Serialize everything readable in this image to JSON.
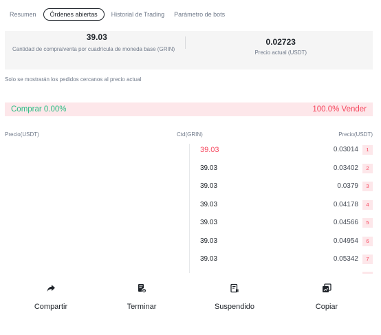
{
  "tabs": [
    {
      "label": "Resumen"
    },
    {
      "label": "Órdenes abiertas",
      "active": true
    },
    {
      "label": "Historial de Trading"
    },
    {
      "label": "Parámetro de bots"
    }
  ],
  "summary": {
    "left": {
      "value": "39.03",
      "label": "Cantidad de compra/venta por cuadrícula de moneda base (GRIN)"
    },
    "right": {
      "value": "0.02723",
      "label": "Precio actual (USDT)"
    }
  },
  "note": "Solo se mostrarán los pedidos cercanos al precio actual",
  "ratio": {
    "buy": "Comprar 0.00%",
    "sell": "100.0% Vender",
    "buy_color": "#2ebd85",
    "sell_color": "#f6465d"
  },
  "table": {
    "headers": {
      "price_left": "Precio(USDT)",
      "qty": "Ctd(GRIN)",
      "price_right": "Precio(USDT)"
    },
    "sell_orders": [
      {
        "qty": "39.03",
        "price": "0.03014",
        "index": "1",
        "highlight": true
      },
      {
        "qty": "39.03",
        "price": "0.03402",
        "index": "2"
      },
      {
        "qty": "39.03",
        "price": "0.0379",
        "index": "3"
      },
      {
        "qty": "39.03",
        "price": "0.04178",
        "index": "4"
      },
      {
        "qty": "39.03",
        "price": "0.04566",
        "index": "5"
      },
      {
        "qty": "39.03",
        "price": "0.04954",
        "index": "6"
      },
      {
        "qty": "39.03",
        "price": "0.05342",
        "index": "7"
      }
    ]
  },
  "actions": [
    {
      "label": "Compartir",
      "icon": "share-icon"
    },
    {
      "label": "Terminar",
      "icon": "terminate-icon"
    },
    {
      "label": "Suspendido",
      "icon": "suspend-icon"
    },
    {
      "label": "Copiar",
      "icon": "copy-icon"
    }
  ]
}
